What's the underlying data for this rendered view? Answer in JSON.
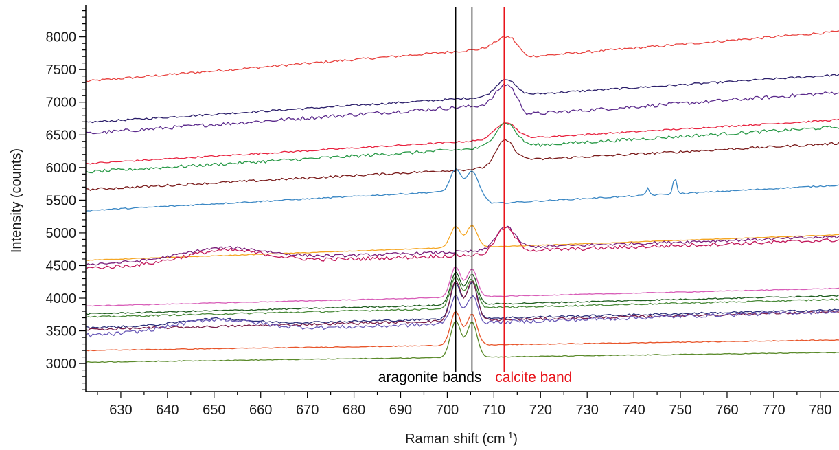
{
  "chart_data": {
    "type": "line",
    "title": "",
    "xlabel": "Raman shift (cm",
    "xlabel_sup": "-1",
    "xlabel_close": ")",
    "ylabel": "Intensity (counts)",
    "xlim": [
      622.5,
      784
    ],
    "ylim": [
      2570,
      8480
    ],
    "x_ticks": [
      630,
      640,
      650,
      660,
      670,
      680,
      690,
      700,
      710,
      720,
      730,
      740,
      750,
      760,
      770,
      780
    ],
    "y_ticks": [
      3000,
      3500,
      4000,
      4500,
      5000,
      5500,
      6000,
      6500,
      7000,
      7500,
      8000
    ],
    "grid": false,
    "reference_lines": [
      {
        "x": 701.8,
        "label": "aragonite bands",
        "color": "#000000"
      },
      {
        "x": 705.3,
        "label": "",
        "color": "#000000"
      },
      {
        "x": 712.2,
        "label": "calcite band",
        "color": "#e8141b"
      }
    ],
    "annotations": [
      {
        "text": "aragonite bands",
        "color": "#000000"
      },
      {
        "text": "calcite band",
        "color": "#e8141b"
      }
    ],
    "series": [
      {
        "color": "#e8423f",
        "start": 7320,
        "end": 8250,
        "noise": 18,
        "peaks": [
          [
            712.5,
            160,
            2.2
          ]
        ],
        "shift": [
          [
            714,
            788,
            -170
          ]
        ]
      },
      {
        "color": "#2c1f6b",
        "start": 6690,
        "end": 7420,
        "noise": 15,
        "peaks": [
          [
            712.5,
            260,
            2.0
          ]
        ]
      },
      {
        "color": "#5b2a8c",
        "start": 6520,
        "end": 7330,
        "noise": 28,
        "peaks": [
          [
            712.5,
            300,
            2.0
          ]
        ],
        "shift": [
          [
            714,
            788,
            -180
          ]
        ]
      },
      {
        "color": "#e8223f",
        "start": 6060,
        "end": 6730,
        "noise": 12,
        "peaks": [
          [
            712.5,
            260,
            2.2
          ]
        ]
      },
      {
        "color": "#2a9a48",
        "start": 5930,
        "end": 6620,
        "noise": 25,
        "peaks": [
          [
            712.5,
            370,
            2.2
          ]
        ]
      },
      {
        "color": "#7a1b1b",
        "start": 5660,
        "end": 6270,
        "noise": 18,
        "peaks": [
          [
            712.5,
            420,
            2.0
          ]
        ],
        "shift": [
          [
            714,
            788,
            100
          ]
        ]
      },
      {
        "color": "#3a87c4",
        "start": 5340,
        "end": 5950,
        "noise": 10,
        "peaks": [
          [
            701.8,
            340,
            1.1
          ],
          [
            705.3,
            290,
            1.1
          ],
          [
            743,
            110,
            0.35
          ],
          [
            748.8,
            270,
            0.35
          ]
        ],
        "shift": [
          [
            706.5,
            788,
            -220
          ]
        ]
      },
      {
        "color": "#f5a623",
        "start": 4580,
        "end": 4980,
        "noise": 5,
        "peaks": [
          [
            701.8,
            320,
            1.1
          ],
          [
            705.3,
            330,
            1.1
          ]
        ],
        "shift": [
          [
            706.5,
            788,
            -10
          ]
        ]
      },
      {
        "color": "#7a1f7a",
        "start": 4520,
        "end": 4900,
        "noise": 22,
        "peaks": [
          [
            712.5,
            320,
            2.0
          ],
          [
            652,
            180,
            9
          ]
        ],
        "shift": [
          [
            708,
            788,
            40
          ]
        ]
      },
      {
        "color": "#c2185b",
        "start": 4460,
        "end": 4850,
        "noise": 28,
        "peaks": [
          [
            712.5,
            360,
            2.0
          ],
          [
            652,
            200,
            9
          ]
        ],
        "shift": [
          [
            708,
            788,
            40
          ]
        ]
      },
      {
        "color": "#d85db8",
        "start": 3880,
        "end": 4150,
        "noise": 6,
        "peaks": [
          [
            701.8,
            470,
            1.1
          ],
          [
            705.3,
            430,
            1.1
          ]
        ]
      },
      {
        "color": "#1f5e1f",
        "start": 3760,
        "end": 4040,
        "noise": 10,
        "peaks": [
          [
            701.8,
            500,
            1.1
          ],
          [
            705.3,
            470,
            1.1
          ]
        ]
      },
      {
        "color": "#4a8a3a",
        "start": 3710,
        "end": 3980,
        "noise": 12,
        "peaks": [
          [
            701.8,
            480,
            1.1
          ],
          [
            705.3,
            440,
            1.1
          ]
        ]
      },
      {
        "color": "#2c2f7a",
        "start": 3550,
        "end": 3820,
        "noise": 16,
        "peaks": [
          [
            701.8,
            560,
            1.1
          ],
          [
            705.3,
            560,
            1.1
          ],
          [
            650,
            90,
            7
          ]
        ]
      },
      {
        "color": "#7a1f4a",
        "start": 3520,
        "end": 3790,
        "noise": 18,
        "peaks": [
          [
            701.8,
            620,
            1.1
          ],
          [
            705.3,
            600,
            1.1
          ]
        ]
      },
      {
        "color": "#6a5ab8",
        "start": 3430,
        "end": 3800,
        "noise": 30,
        "peaks": [
          [
            701.8,
            420,
            1.1
          ],
          [
            705.3,
            420,
            1.1
          ],
          [
            650,
            180,
            9
          ]
        ]
      },
      {
        "color": "#e8552a",
        "start": 3200,
        "end": 3360,
        "noise": 6,
        "peaks": [
          [
            701.8,
            520,
            1.1
          ],
          [
            705.3,
            470,
            1.1
          ]
        ]
      },
      {
        "color": "#5a8a2a",
        "start": 3020,
        "end": 3170,
        "noise": 6,
        "peaks": [
          [
            701.8,
            560,
            1.1
          ],
          [
            705.3,
            540,
            1.1
          ]
        ]
      }
    ]
  }
}
